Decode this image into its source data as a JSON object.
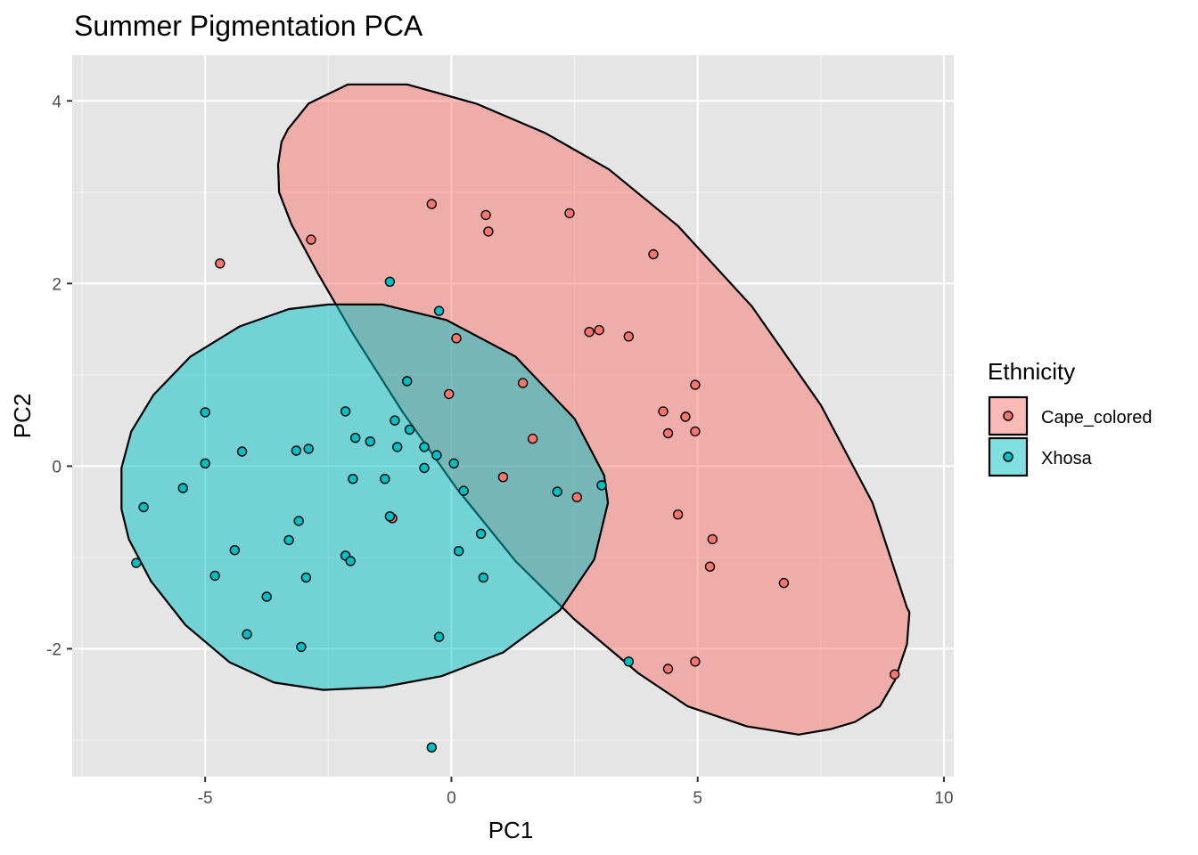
{
  "chart_data": {
    "type": "scatter",
    "title": "Summer Pigmentation PCA",
    "xlabel": "PC1",
    "ylabel": "PC2",
    "xlim": [
      -7.7,
      10.2
    ],
    "ylim": [
      -3.4,
      4.5
    ],
    "x_major_ticks": [
      -5,
      0,
      5,
      10
    ],
    "x_tick_labels": [
      "-5",
      "0",
      "5",
      "10"
    ],
    "x_minor_ticks": [
      -7.5,
      -2.5,
      2.5,
      7.5
    ],
    "y_major_ticks": [
      -2,
      0,
      2,
      4
    ],
    "y_tick_labels": [
      "-2",
      "0",
      "2",
      "4"
    ],
    "y_minor_ticks": [
      -3,
      -1,
      1,
      3
    ],
    "grid": true,
    "panel_background": "#e5e5e5",
    "legend": {
      "title": "Ethnicity",
      "position": "right",
      "entries": [
        "Cape_colored",
        "Xhosa"
      ]
    },
    "series": [
      {
        "name": "Cape_colored",
        "color": "#f8766d",
        "ellipse_color": "#f8766d",
        "points": [
          [
            -0.4,
            2.87
          ],
          [
            0.7,
            2.75
          ],
          [
            0.75,
            2.57
          ],
          [
            2.4,
            2.77
          ],
          [
            -2.85,
            2.48
          ],
          [
            -4.7,
            2.22
          ],
          [
            4.1,
            2.32
          ],
          [
            0.1,
            1.4
          ],
          [
            2.8,
            1.47
          ],
          [
            3.0,
            1.49
          ],
          [
            3.6,
            1.42
          ],
          [
            -0.05,
            0.79
          ],
          [
            1.45,
            0.91
          ],
          [
            4.95,
            0.89
          ],
          [
            4.3,
            0.6
          ],
          [
            4.75,
            0.54
          ],
          [
            4.4,
            0.36
          ],
          [
            4.95,
            0.38
          ],
          [
            1.65,
            0.3
          ],
          [
            1.05,
            -0.12
          ],
          [
            2.55,
            -0.34
          ],
          [
            -1.2,
            -0.57
          ],
          [
            4.6,
            -0.53
          ],
          [
            5.3,
            -0.8
          ],
          [
            5.25,
            -1.1
          ],
          [
            6.75,
            -1.28
          ],
          [
            4.4,
            -2.22
          ],
          [
            4.95,
            -2.14
          ],
          [
            9.0,
            -2.28
          ]
        ]
      },
      {
        "name": "Xhosa",
        "color": "#00bfc4",
        "ellipse_color": "#00bfc4",
        "points": [
          [
            -1.25,
            2.02
          ],
          [
            -0.25,
            1.7
          ],
          [
            -0.9,
            0.93
          ],
          [
            -2.15,
            0.6
          ],
          [
            -1.15,
            0.5
          ],
          [
            -0.85,
            0.4
          ],
          [
            -5.0,
            0.59
          ],
          [
            -1.95,
            0.31
          ],
          [
            -1.65,
            0.27
          ],
          [
            -1.1,
            0.21
          ],
          [
            -0.55,
            0.21
          ],
          [
            -0.3,
            0.12
          ],
          [
            -4.25,
            0.16
          ],
          [
            -3.15,
            0.17
          ],
          [
            -2.9,
            0.19
          ],
          [
            -5.0,
            0.03
          ],
          [
            0.05,
            0.03
          ],
          [
            -0.55,
            -0.02
          ],
          [
            -2.0,
            -0.14
          ],
          [
            -1.35,
            -0.14
          ],
          [
            -5.45,
            -0.24
          ],
          [
            0.25,
            -0.27
          ],
          [
            2.15,
            -0.28
          ],
          [
            3.05,
            -0.21
          ],
          [
            -6.25,
            -0.45
          ],
          [
            -1.25,
            -0.55
          ],
          [
            -3.1,
            -0.6
          ],
          [
            -3.3,
            -0.81
          ],
          [
            0.6,
            -0.74
          ],
          [
            -4.4,
            -0.92
          ],
          [
            -2.15,
            -0.98
          ],
          [
            -2.05,
            -1.04
          ],
          [
            0.15,
            -0.93
          ],
          [
            -6.4,
            -1.06
          ],
          [
            -4.8,
            -1.2
          ],
          [
            -2.95,
            -1.22
          ],
          [
            0.65,
            -1.22
          ],
          [
            -3.75,
            -1.43
          ],
          [
            -4.15,
            -1.84
          ],
          [
            -0.25,
            -1.87
          ],
          [
            -3.05,
            -1.98
          ],
          [
            3.6,
            -2.14
          ],
          [
            -0.4,
            -3.08
          ]
        ]
      }
    ],
    "ellipses": [
      {
        "group": "Cape_colored",
        "outline": [
          [
            -3.32,
            3.69
          ],
          [
            -2.9,
            3.97
          ],
          [
            -2.1,
            4.18
          ],
          [
            -0.9,
            4.18
          ],
          [
            0.5,
            3.97
          ],
          [
            1.9,
            3.65
          ],
          [
            3.2,
            3.25
          ],
          [
            4.6,
            2.63
          ],
          [
            6.1,
            1.75
          ],
          [
            7.5,
            0.67
          ],
          [
            8.55,
            -0.4
          ],
          [
            9.25,
            -1.55
          ],
          [
            9.3,
            -1.6
          ],
          [
            9.25,
            -1.95
          ],
          [
            9.0,
            -2.35
          ],
          [
            8.7,
            -2.63
          ],
          [
            8.2,
            -2.8
          ],
          [
            7.7,
            -2.88
          ],
          [
            7.05,
            -2.94
          ],
          [
            6.0,
            -2.85
          ],
          [
            4.8,
            -2.63
          ],
          [
            3.8,
            -2.27
          ],
          [
            2.5,
            -1.68
          ],
          [
            1.3,
            -1.04
          ],
          [
            0.1,
            -0.24
          ],
          [
            -1.0,
            0.6
          ],
          [
            -2.0,
            1.45
          ],
          [
            -2.7,
            2.1
          ],
          [
            -3.25,
            2.65
          ],
          [
            -3.5,
            3.0
          ],
          [
            -3.52,
            3.3
          ],
          [
            -3.45,
            3.55
          ]
        ]
      },
      {
        "group": "Xhosa",
        "outline": [
          [
            -1.4,
            1.77
          ],
          [
            -0.1,
            1.6
          ],
          [
            1.3,
            1.2
          ],
          [
            2.5,
            0.52
          ],
          [
            3.1,
            -0.1
          ],
          [
            3.18,
            -0.4
          ],
          [
            2.9,
            -1.02
          ],
          [
            2.2,
            -1.58
          ],
          [
            1.05,
            -2.04
          ],
          [
            -0.2,
            -2.3
          ],
          [
            -1.4,
            -2.42
          ],
          [
            -2.6,
            -2.45
          ],
          [
            -3.6,
            -2.37
          ],
          [
            -4.5,
            -2.15
          ],
          [
            -5.4,
            -1.74
          ],
          [
            -6.1,
            -1.26
          ],
          [
            -6.55,
            -0.8
          ],
          [
            -6.7,
            -0.47
          ],
          [
            -6.7,
            -0.02
          ],
          [
            -6.5,
            0.38
          ],
          [
            -6.05,
            0.78
          ],
          [
            -5.3,
            1.2
          ],
          [
            -4.3,
            1.53
          ],
          [
            -3.3,
            1.72
          ],
          [
            -2.5,
            1.77
          ]
        ]
      }
    ]
  }
}
